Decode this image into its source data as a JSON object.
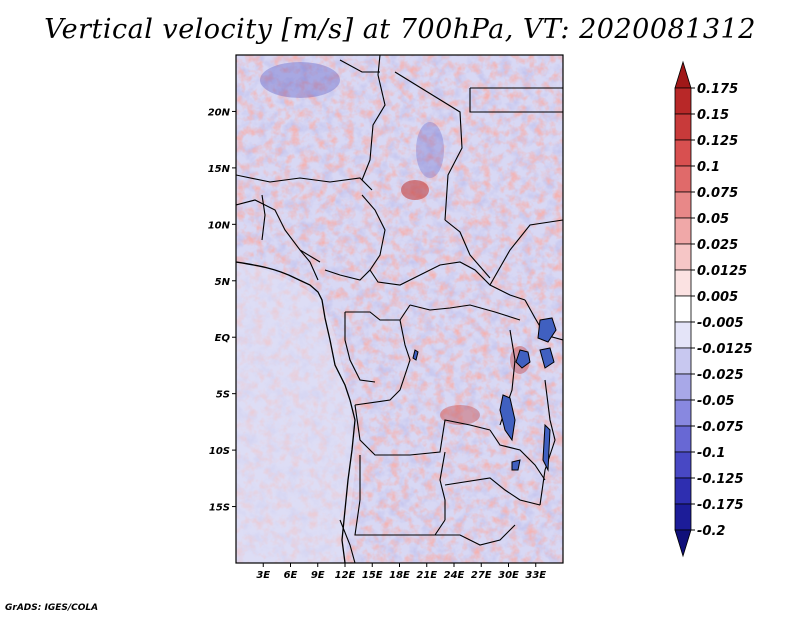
{
  "title": "Vertical velocity [m/s] at 700hPa, VT: 2020081312",
  "credit": "GrADS: IGES/COLA",
  "map": {
    "lon_range": [
      0,
      36
    ],
    "lat_range": [
      -20,
      25
    ],
    "x_ticks": [
      "3E",
      "6E",
      "9E",
      "12E",
      "15E",
      "18E",
      "21E",
      "24E",
      "27E",
      "30E",
      "33E"
    ],
    "y_ticks": [
      "20N",
      "15N",
      "10N",
      "5N",
      "EQ",
      "5S",
      "10S",
      "15S"
    ]
  },
  "colorbar": {
    "labels": [
      "0.175",
      "0.15",
      "0.125",
      "0.1",
      "0.075",
      "0.05",
      "0.025",
      "0.0125",
      "0.005",
      "-0.005",
      "-0.0125",
      "-0.025",
      "-0.05",
      "-0.075",
      "-0.1",
      "-0.125",
      "-0.175",
      "-0.2"
    ],
    "colors": [
      "#a01818",
      "#b82828",
      "#c83a3a",
      "#d85050",
      "#e06a6a",
      "#e88888",
      "#f0a8a8",
      "#f6c6c6",
      "#fbe2e2",
      "#ffffff",
      "#e4e4f8",
      "#c8c8f0",
      "#a8a8e8",
      "#8888e0",
      "#6868d4",
      "#4848c4",
      "#2e2eb0",
      "#1c1c98",
      "#10107a"
    ]
  }
}
